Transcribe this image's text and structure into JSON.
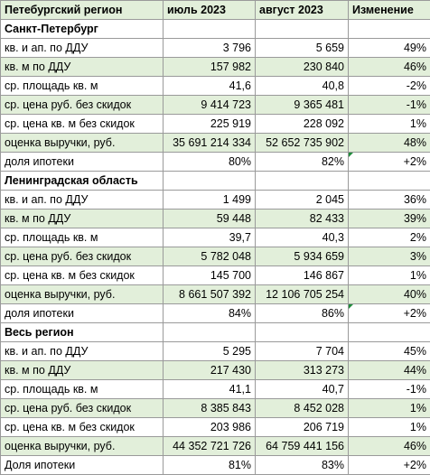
{
  "header": {
    "col0": "Петебургский регион",
    "col1": "июль 2023",
    "col2": "август 2023",
    "col3": "Изменение"
  },
  "sections": [
    {
      "title": "Санкт-Петербург",
      "rows": [
        {
          "label": "кв. и ап. по ДДУ",
          "jul": "3 796",
          "aug": "5 659",
          "chg": "49%"
        },
        {
          "label": "кв. м по ДДУ",
          "jul": "157 982",
          "aug": "230 840",
          "chg": "46%"
        },
        {
          "label": "ср. площадь кв. м",
          "jul": "41,6",
          "aug": "40,8",
          "chg": "-2%"
        },
        {
          "label": "ср. цена руб. без скидок",
          "jul": "9 414 723",
          "aug": "9 365 481",
          "chg": "-1%"
        },
        {
          "label": "ср. цена кв. м без скидок",
          "jul": "225 919",
          "aug": "228 092",
          "chg": "1%"
        },
        {
          "label": "оценка выручки, руб.",
          "jul": "35 691 214 334",
          "aug": "52 652 735 902",
          "chg": "48%"
        },
        {
          "label": "доля ипотеки",
          "jul": "80%",
          "aug": "82%",
          "chg": "+2%"
        }
      ]
    },
    {
      "title": "Ленинградская область",
      "rows": [
        {
          "label": "кв. и ап. по ДДУ",
          "jul": "1 499",
          "aug": "2 045",
          "chg": "36%"
        },
        {
          "label": "кв. м по ДДУ",
          "jul": "59 448",
          "aug": "82 433",
          "chg": "39%"
        },
        {
          "label": "ср. площадь кв. м",
          "jul": "39,7",
          "aug": "40,3",
          "chg": "2%"
        },
        {
          "label": "ср. цена руб. без скидок",
          "jul": "5 782 048",
          "aug": "5 934 659",
          "chg": "3%"
        },
        {
          "label": "ср. цена кв. м без скидок",
          "jul": "145 700",
          "aug": "146 867",
          "chg": "1%"
        },
        {
          "label": "оценка выручки, руб.",
          "jul": "8 661 507 392",
          "aug": "12 106 705 254",
          "chg": "40%"
        },
        {
          "label": "доля ипотеки",
          "jul": "84%",
          "aug": "86%",
          "chg": "+2%"
        }
      ]
    },
    {
      "title": "Весь регион",
      "rows": [
        {
          "label": "кв. и ап. по ДДУ",
          "jul": "5 295",
          "aug": "7 704",
          "chg": "45%"
        },
        {
          "label": "кв. м по ДДУ",
          "jul": "217 430",
          "aug": "313 273",
          "chg": "44%"
        },
        {
          "label": "ср. площадь кв. м",
          "jul": "41,1",
          "aug": "40,7",
          "chg": "-1%"
        },
        {
          "label": "ср. цена руб. без скидок",
          "jul": "8 385 843",
          "aug": "8 452 028",
          "chg": "1%"
        },
        {
          "label": "ср. цена кв. м без скидок",
          "jul": "203 986",
          "aug": "206 719",
          "chg": "1%"
        },
        {
          "label": "оценка выручки, руб.",
          "jul": "44 352 721 726",
          "aug": "64 759 441 156",
          "chg": "46%"
        },
        {
          "label": "Доля ипотеки",
          "jul": "81%",
          "aug": "83%",
          "chg": "+2%"
        }
      ]
    }
  ],
  "colors": {
    "row_fill": "#e2efda",
    "grid": "#9a9a9a",
    "comment_flag": "#1e8c3a"
  }
}
